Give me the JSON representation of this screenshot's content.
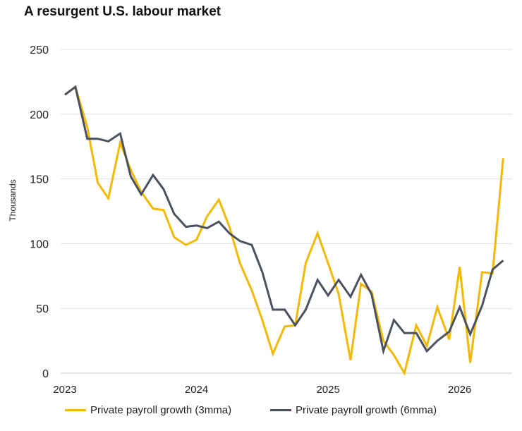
{
  "chart_data": {
    "type": "line",
    "title": "A resurgent U.S. labour market",
    "xlabel": "",
    "ylabel": "Thousands",
    "ylim": [
      0,
      250
    ],
    "yticks": [
      0,
      50,
      100,
      150,
      200,
      250
    ],
    "xlim": [
      2023.0,
      2026.35
    ],
    "xticks": [
      2023,
      2024,
      2025,
      2026
    ],
    "grid": true,
    "legend_position": "bottom",
    "series": [
      {
        "name": "Private payroll growth (3mma)",
        "color": "#F2B900",
        "points": [
          [
            2023.0,
            215
          ],
          [
            2023.08,
            221
          ],
          [
            2023.17,
            190
          ],
          [
            2023.25,
            147
          ],
          [
            2023.33,
            135
          ],
          [
            2023.42,
            178
          ],
          [
            2023.5,
            157
          ],
          [
            2023.58,
            140
          ],
          [
            2023.67,
            127
          ],
          [
            2023.75,
            126
          ],
          [
            2023.83,
            105
          ],
          [
            2023.92,
            99
          ],
          [
            2024.0,
            103
          ],
          [
            2024.08,
            121
          ],
          [
            2024.17,
            134
          ],
          [
            2024.25,
            113
          ],
          [
            2024.33,
            85
          ],
          [
            2024.42,
            64
          ],
          [
            2024.5,
            41
          ],
          [
            2024.58,
            15
          ],
          [
            2024.67,
            36
          ],
          [
            2024.75,
            37
          ],
          [
            2024.83,
            85
          ],
          [
            2024.92,
            108
          ],
          [
            2025.0,
            85
          ],
          [
            2025.08,
            61
          ],
          [
            2025.17,
            10
          ],
          [
            2025.25,
            69
          ],
          [
            2025.33,
            63
          ],
          [
            2025.42,
            25
          ],
          [
            2025.5,
            14
          ],
          [
            2025.58,
            0
          ],
          [
            2025.67,
            37
          ],
          [
            2025.75,
            21
          ],
          [
            2025.83,
            51
          ],
          [
            2025.92,
            26
          ],
          [
            2026.0,
            82
          ],
          [
            2026.08,
            8
          ],
          [
            2026.17,
            78
          ],
          [
            2026.25,
            77
          ],
          [
            2026.33,
            166
          ]
        ]
      },
      {
        "name": "Private payroll growth (6mma)",
        "color": "#4A5260",
        "points": [
          [
            2023.0,
            215
          ],
          [
            2023.08,
            221
          ],
          [
            2023.17,
            181
          ],
          [
            2023.25,
            181
          ],
          [
            2023.33,
            179
          ],
          [
            2023.42,
            185
          ],
          [
            2023.5,
            152
          ],
          [
            2023.58,
            138
          ],
          [
            2023.67,
            153
          ],
          [
            2023.75,
            142
          ],
          [
            2023.83,
            123
          ],
          [
            2023.92,
            113
          ],
          [
            2024.0,
            114
          ],
          [
            2024.08,
            112
          ],
          [
            2024.17,
            117
          ],
          [
            2024.25,
            108
          ],
          [
            2024.33,
            102
          ],
          [
            2024.42,
            99
          ],
          [
            2024.5,
            78
          ],
          [
            2024.58,
            49
          ],
          [
            2024.67,
            49
          ],
          [
            2024.75,
            37
          ],
          [
            2024.83,
            49
          ],
          [
            2024.92,
            72
          ],
          [
            2025.0,
            60
          ],
          [
            2025.08,
            72
          ],
          [
            2025.17,
            59
          ],
          [
            2025.25,
            76
          ],
          [
            2025.33,
            61
          ],
          [
            2025.42,
            17
          ],
          [
            2025.5,
            41
          ],
          [
            2025.58,
            31
          ],
          [
            2025.67,
            31
          ],
          [
            2025.75,
            17
          ],
          [
            2025.83,
            25
          ],
          [
            2025.92,
            32
          ],
          [
            2026.0,
            51
          ],
          [
            2026.08,
            30
          ],
          [
            2026.17,
            52
          ],
          [
            2026.25,
            80
          ],
          [
            2026.33,
            87
          ]
        ]
      }
    ]
  }
}
